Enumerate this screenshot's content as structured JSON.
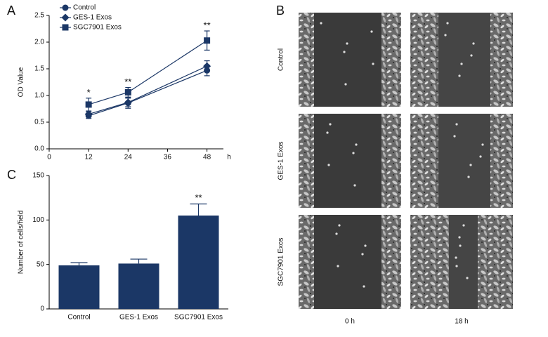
{
  "chart_data": [
    {
      "type": "line",
      "panel": "A",
      "xlabel": "h",
      "ylabel": "OD Value",
      "x": [
        12,
        24,
        48
      ],
      "xlim": [
        0,
        53
      ],
      "xticks": [
        0,
        12,
        24,
        36,
        48
      ],
      "ylim": [
        0,
        2.5
      ],
      "yticks": [
        {
          "value": 0,
          "label": "0.0"
        },
        0.5,
        {
          "value": 1,
          "label": "1.0"
        },
        1.5,
        {
          "value": 2,
          "label": "2.0"
        },
        2.5
      ],
      "legend": "upper left",
      "series": [
        {
          "name": "Control",
          "color": "#1b3766",
          "marker": "circle",
          "values": [
            0.62,
            0.86,
            1.47
          ],
          "errors": [
            0.05,
            0.1,
            0.1
          ]
        },
        {
          "name": "GES-1 Exos",
          "color": "#1b3766",
          "marker": "diamond",
          "values": [
            0.65,
            0.87,
            1.55
          ],
          "errors": [
            0.05,
            0.08,
            0.1
          ]
        },
        {
          "name": "SGC7901 Exos",
          "color": "#1b3766",
          "marker": "square",
          "values": [
            0.83,
            1.06,
            2.03
          ],
          "errors": [
            0.12,
            0.09,
            0.18
          ]
        }
      ],
      "annotations": [
        "*",
        "**",
        "**"
      ]
    },
    {
      "type": "bar",
      "panel": "C",
      "ylabel": "Number of cells/field",
      "categories": [
        "Control",
        "GES-1 Exos",
        "SGC7901 Exos"
      ],
      "values": [
        49,
        51,
        105
      ],
      "errors": [
        3,
        5,
        13
      ],
      "color": "#1b3766",
      "ylim": [
        0,
        150
      ],
      "yticks": [
        0,
        50,
        100,
        150
      ],
      "annotations": [
        null,
        null,
        "**"
      ]
    }
  ],
  "panel_b": {
    "panel": "B",
    "rows": [
      "Control",
      "GES-1 Exos",
      "SGC7901 Exos"
    ],
    "columns": [
      "0 h",
      "18 h"
    ]
  }
}
